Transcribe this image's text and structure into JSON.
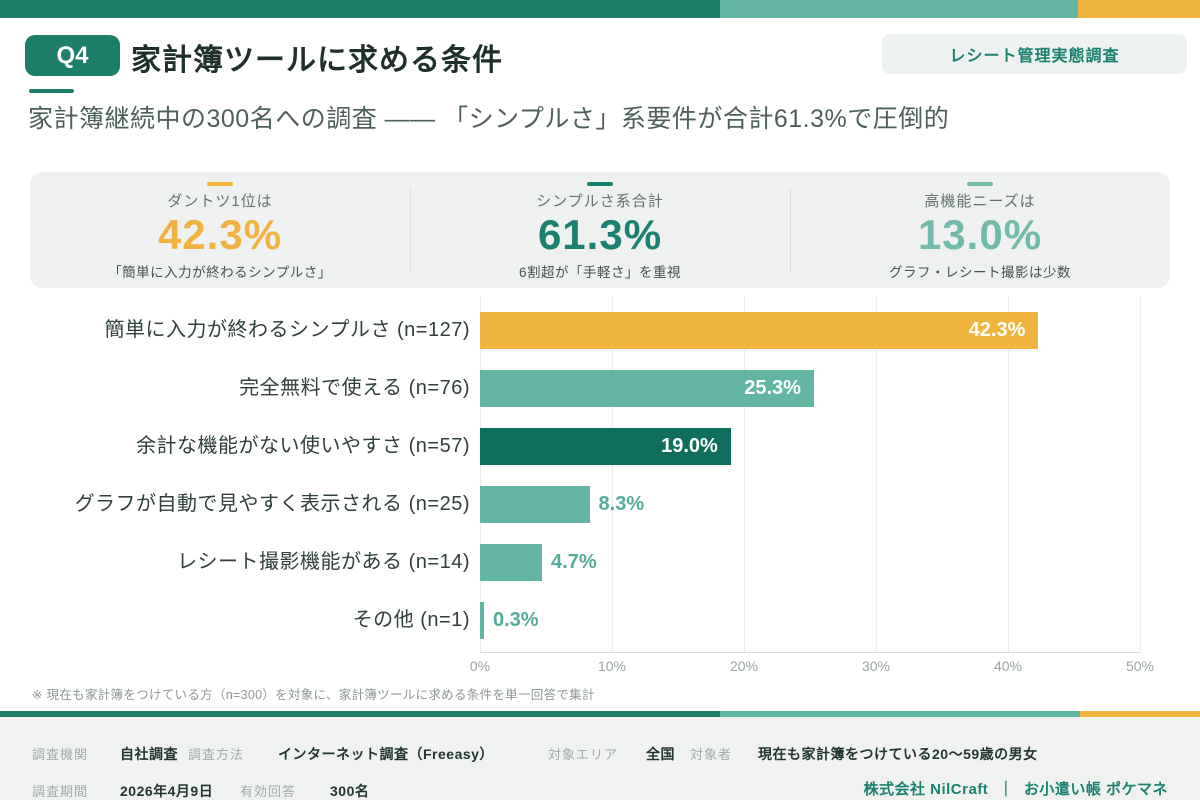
{
  "colors": {
    "primary_teal_dark": "#1E7E6A",
    "teal_medium": "#63B5A3",
    "teal_light": "#72BAA9",
    "orange": "#F1B43F",
    "bar_teal_dark": "#0F6E5D",
    "panel_gray": "#EEF1EF",
    "footer_gray": "#F0F2F0"
  },
  "header": {
    "question_badge": "Q4",
    "title": "家計簿ツールに求める条件",
    "survey_badge": "レシート管理実態調査",
    "subtitle": "家計簿継続中の300名への調査 —— 「シンプルさ」系要件が合計61.3%で圧倒的"
  },
  "stats": {
    "items": [
      {
        "label": "ダントツ1位は",
        "value": "42.3%",
        "caption": "「簡単に入力が終わるシンプルさ」",
        "accent": "#F1B43F"
      },
      {
        "label": "シンプルさ系合計",
        "value": "61.3%",
        "caption": "6割超が「手軽さ」を重視",
        "accent": "#1B8070"
      },
      {
        "label": "高機能ニーズは",
        "value": "13.0%",
        "caption": "グラフ・レシート撮影は少数",
        "accent": "#72BAA9"
      }
    ]
  },
  "chart_data": {
    "type": "bar",
    "orientation": "horizontal",
    "title": "",
    "xlabel": "",
    "ylabel": "",
    "xlim": [
      0,
      50
    ],
    "x_ticks": [
      "0%",
      "10%",
      "20%",
      "30%",
      "40%",
      "50%"
    ],
    "grid": true,
    "legend": false,
    "bars": [
      {
        "label": "簡単に入力が終わるシンプルさ (n=127)",
        "n": 127,
        "value": 42.3,
        "display": "42.3%",
        "color": "#F1B43F",
        "value_label_position": "inside"
      },
      {
        "label": "完全無料で使える (n=76)",
        "n": 76,
        "value": 25.3,
        "display": "25.3%",
        "color": "#63B5A3",
        "value_label_position": "inside"
      },
      {
        "label": "余計な機能がない使いやすさ (n=57)",
        "n": 57,
        "value": 19.0,
        "display": "19.0%",
        "color": "#0F6E5D",
        "value_label_position": "inside"
      },
      {
        "label": "グラフが自動で見やすく表示される (n=25)",
        "n": 25,
        "value": 8.3,
        "display": "8.3%",
        "color": "#63B5A3",
        "value_label_position": "outside"
      },
      {
        "label": "レシート撮影機能がある (n=14)",
        "n": 14,
        "value": 4.7,
        "display": "4.7%",
        "color": "#63B5A3",
        "value_label_position": "outside"
      },
      {
        "label": "その他 (n=1)",
        "n": 1,
        "value": 0.3,
        "display": "0.3%",
        "color": "#63B5A3",
        "value_label_position": "outside"
      }
    ]
  },
  "footnote": "※ 現在も家計簿をつけている方（n=300）を対象に、家計簿ツールに求める条件を単一回答で集計",
  "footer": {
    "fields_row1": [
      {
        "key": "調査機関",
        "value": "自社調査"
      },
      {
        "key": "調査方法",
        "value": "インターネット調査（Freeasy）"
      },
      {
        "key": "対象エリア",
        "value": "全国"
      },
      {
        "key": "対象者",
        "value": "現在も家計簿をつけている20〜59歳の男女"
      }
    ],
    "fields_row2": [
      {
        "key": "調査期間",
        "value": "2026年4月9日"
      },
      {
        "key": "有効回答",
        "value": "300名"
      }
    ],
    "brand": {
      "company": "株式会社 NilCraft",
      "separator": "｜",
      "product": "お小遣い帳 ポケマネ"
    }
  }
}
